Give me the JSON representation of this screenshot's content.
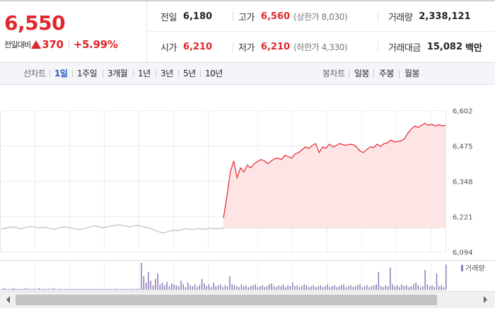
{
  "quote": {
    "price": "6,550",
    "change_label": "전일대비",
    "change_amount": "370",
    "change_percent": "+5.99%",
    "direction_icon": "up-triangle-icon",
    "color_up": "#e0262b"
  },
  "stats": {
    "prev_close_label": "전일",
    "prev_close": "6,180",
    "open_label": "시가",
    "open": "6,210",
    "high_label": "고가",
    "high": "6,560",
    "upper_limit": "(상한가 8,030)",
    "low_label": "저가",
    "low": "6,210",
    "lower_limit": "(하한가 4,330)",
    "volume_label": "거래량",
    "volume": "2,338,121",
    "value_label": "거래대금",
    "value": "15,082",
    "value_unit": "백만"
  },
  "tabs": {
    "line_title": "선차트",
    "line": [
      "1일",
      "1주일",
      "3개월",
      "1년",
      "3년",
      "5년",
      "10년"
    ],
    "line_active": "1일",
    "candle_title": "봉차트",
    "candle": [
      "일봉",
      "주봉",
      "월봉"
    ]
  },
  "chart_data": {
    "type": "line",
    "y_ticks": [
      6602,
      6475,
      6348,
      6221,
      6094
    ],
    "ylim": [
      6094,
      6602
    ],
    "prev_close_line": 6180,
    "volume_legend": "거래량",
    "colors": {
      "today": "#e8303a",
      "today_fill": "#fde5e6",
      "previous": "#bcbcbc",
      "volume": "#8a79b6"
    },
    "previous_day": [
      6175,
      6178,
      6180,
      6183,
      6180,
      6176,
      6179,
      6182,
      6185,
      6182,
      6178,
      6181,
      6180,
      6176,
      6174,
      6178,
      6181,
      6183,
      6180,
      6177,
      6175,
      6173,
      6176,
      6180,
      6184,
      6187,
      6183,
      6180,
      6182,
      6185,
      6188,
      6190,
      6189,
      6186,
      6183,
      6185,
      6188,
      6186,
      6183,
      6180,
      6176,
      6170,
      6165,
      6161,
      6164,
      6168,
      6171,
      6169,
      6172,
      6176,
      6175,
      6173,
      6177,
      6176,
      6174,
      6176,
      6178,
      6175,
      6177,
      6176
    ],
    "today": [
      6215,
      6290,
      6380,
      6420,
      6360,
      6395,
      6380,
      6405,
      6395,
      6410,
      6418,
      6425,
      6420,
      6410,
      6420,
      6428,
      6430,
      6425,
      6440,
      6435,
      6430,
      6445,
      6450,
      6460,
      6470,
      6465,
      6475,
      6482,
      6450,
      6470,
      6465,
      6480,
      6470,
      6475,
      6482,
      6478,
      6476,
      6480,
      6478,
      6470,
      6455,
      6450,
      6462,
      6470,
      6468,
      6480,
      6472,
      6482,
      6485,
      6495,
      6488,
      6490,
      6492,
      6500,
      6520,
      6535,
      6545,
      6540,
      6548,
      6555,
      6548,
      6552,
      6545,
      6550,
      6546,
      6548
    ],
    "volumes": [
      1,
      2,
      1,
      1,
      1,
      2,
      1,
      1,
      1,
      1,
      2,
      1,
      1,
      1,
      1,
      1,
      2,
      1,
      1,
      1,
      1,
      1,
      2,
      1,
      1,
      1,
      1,
      1,
      1,
      1,
      1,
      1,
      1,
      1,
      1,
      1,
      1,
      1,
      1,
      1,
      1,
      1,
      1,
      1,
      1,
      1,
      1,
      1,
      1,
      1,
      1,
      1,
      1,
      1,
      1,
      1,
      1,
      1,
      1,
      1,
      30,
      15,
      8,
      20,
      10,
      5,
      12,
      18,
      6,
      8,
      5,
      9,
      4,
      7,
      6,
      5,
      4,
      10,
      6,
      3,
      8,
      5,
      4,
      6,
      3,
      5,
      12,
      7,
      4,
      6,
      3,
      8,
      4,
      5,
      6,
      3,
      5,
      4,
      15,
      6,
      5,
      4,
      3,
      6,
      4,
      5,
      3,
      4,
      5,
      6,
      3,
      4,
      5,
      3,
      4,
      6,
      7,
      4,
      3,
      5,
      4,
      6,
      3,
      5,
      4,
      8,
      4,
      5,
      3,
      4,
      6,
      5,
      3,
      4,
      5,
      3,
      4,
      5,
      3,
      4,
      6,
      3,
      4,
      5,
      3,
      4,
      5,
      6,
      3,
      4,
      5,
      3,
      4,
      5,
      6,
      3,
      4,
      5,
      3,
      4,
      5,
      6,
      20,
      4,
      3,
      5,
      4,
      25,
      6,
      4,
      5,
      3,
      6,
      4,
      5,
      3,
      4,
      6,
      8,
      5,
      3,
      4,
      22,
      6,
      4,
      5,
      3,
      18,
      4,
      5,
      3,
      28
    ]
  }
}
